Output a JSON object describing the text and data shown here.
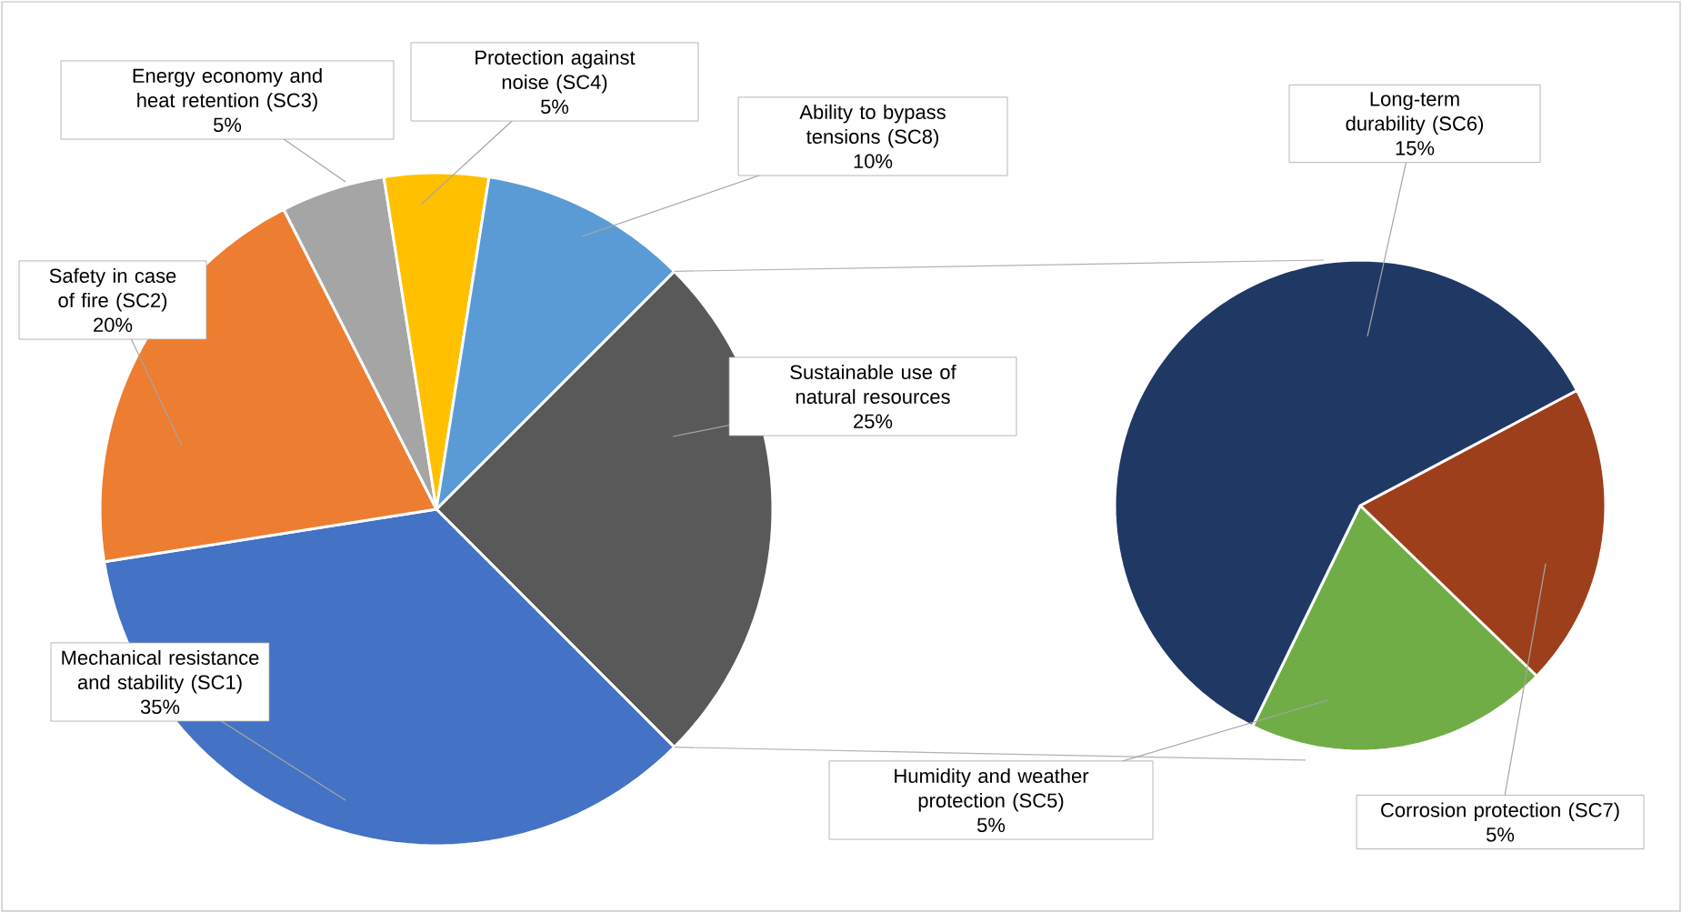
{
  "chart_data": [
    {
      "type": "pie",
      "categories": [
        "Sustainable use of natural resources",
        "Mechanical resistance and stability (SC1)",
        "Safety in case of fire (SC2)",
        "Energy economy and heat retention (SC3)",
        "Protection against noise (SC4)",
        "Ability to bypass tensions (SC8)"
      ],
      "values": [
        25,
        35,
        20,
        5,
        5,
        10
      ],
      "value_labels": [
        "25%",
        "35%",
        "20%",
        "5%",
        "5%",
        "10%"
      ],
      "colors": [
        "#595959",
        "#4472c4",
        "#ed7d31",
        "#a5a5a5",
        "#ffc000",
        "#5b9bd5"
      ]
    },
    {
      "type": "pie",
      "categories": [
        "Corrosion protection (SC7)",
        "Humidity and weather protection (SC5)",
        "Long-term durability (SC6)"
      ],
      "values": [
        5,
        5,
        15
      ],
      "value_labels": [
        "5%",
        "5%",
        "15%"
      ],
      "colors": [
        "#9e3f1c",
        "#70ad47",
        "#203864"
      ]
    }
  ]
}
